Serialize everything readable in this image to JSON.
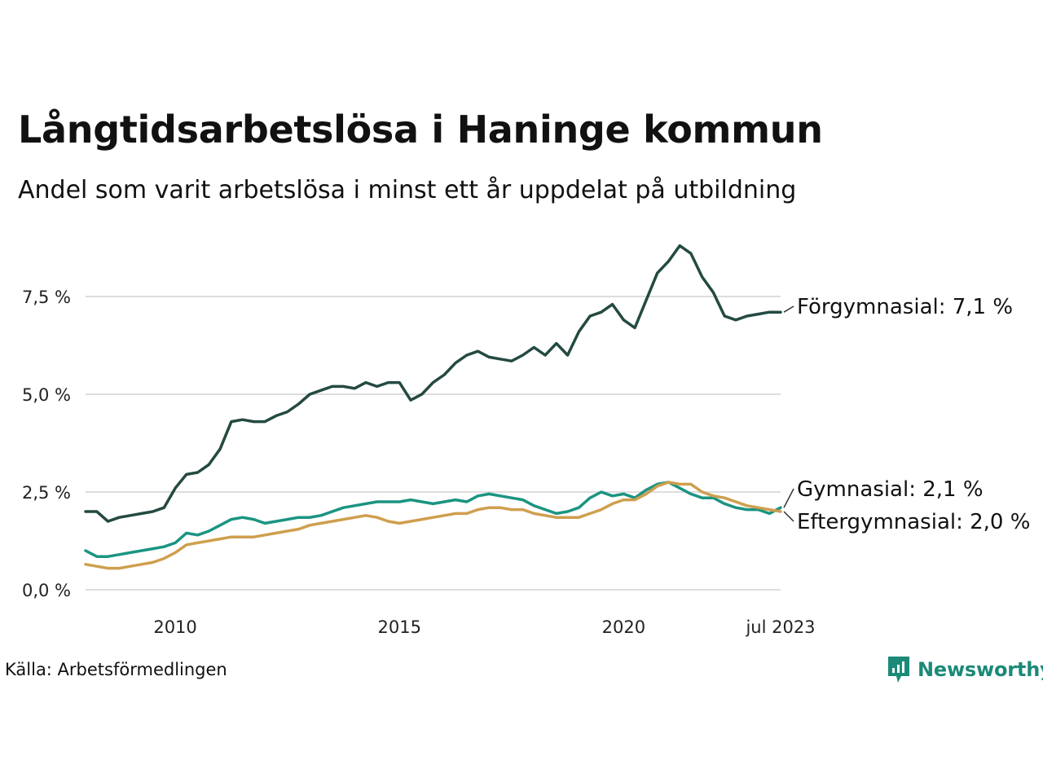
{
  "title": "Långtidsarbetslösa i Haninge kommun",
  "subtitle": "Andel som varit arbetslösa i minst ett år uppdelat på utbildning",
  "source": "Källa: Arbetsförmedlingen",
  "brand": "Newsworthy",
  "colors": {
    "forgymnasial": "#244a42",
    "gymnasial": "#1b9482",
    "eftergymnasial": "#cf9f4e",
    "grid": "#dddddd",
    "brand": "#1b8a78"
  },
  "chart_data": {
    "type": "line",
    "title": "Långtidsarbetslösa i Haninge kommun",
    "subtitle": "Andel som varit arbetslösa i minst ett år uppdelat på utbildning",
    "xlabel": "",
    "ylabel": "",
    "ylim": [
      0,
      9
    ],
    "y_ticks": [
      {
        "value": 0,
        "label": "0,0 %"
      },
      {
        "value": 2.5,
        "label": "2,5 %"
      },
      {
        "value": 5,
        "label": "5,0 %"
      },
      {
        "value": 7.5,
        "label": "7,5 %"
      }
    ],
    "x_ticks": [
      {
        "value": 2010,
        "label": "2010"
      },
      {
        "value": 2015,
        "label": "2015"
      },
      {
        "value": 2020,
        "label": "2020"
      },
      {
        "value": 2023.5,
        "label": "jul 2023"
      }
    ],
    "grid": "horizontal",
    "legend": "end-labels",
    "series": [
      {
        "name": "Förgymnasial",
        "end_label": "Förgymnasial: 7,1 %",
        "color": "#244a42",
        "points": [
          [
            2008.0,
            2.0
          ],
          [
            2008.25,
            2.0
          ],
          [
            2008.5,
            1.75
          ],
          [
            2008.75,
            1.85
          ],
          [
            2009.0,
            1.9
          ],
          [
            2009.25,
            1.95
          ],
          [
            2009.5,
            2.0
          ],
          [
            2009.75,
            2.1
          ],
          [
            2010.0,
            2.6
          ],
          [
            2010.25,
            2.95
          ],
          [
            2010.5,
            3.0
          ],
          [
            2010.75,
            3.2
          ],
          [
            2011.0,
            3.6
          ],
          [
            2011.25,
            4.3
          ],
          [
            2011.5,
            4.35
          ],
          [
            2011.75,
            4.3
          ],
          [
            2012.0,
            4.3
          ],
          [
            2012.25,
            4.45
          ],
          [
            2012.5,
            4.55
          ],
          [
            2012.75,
            4.75
          ],
          [
            2013.0,
            5.0
          ],
          [
            2013.25,
            5.1
          ],
          [
            2013.5,
            5.2
          ],
          [
            2013.75,
            5.2
          ],
          [
            2014.0,
            5.15
          ],
          [
            2014.25,
            5.3
          ],
          [
            2014.5,
            5.2
          ],
          [
            2014.75,
            5.3
          ],
          [
            2015.0,
            5.3
          ],
          [
            2015.25,
            4.85
          ],
          [
            2015.5,
            5.0
          ],
          [
            2015.75,
            5.3
          ],
          [
            2016.0,
            5.5
          ],
          [
            2016.25,
            5.8
          ],
          [
            2016.5,
            6.0
          ],
          [
            2016.75,
            6.1
          ],
          [
            2017.0,
            5.95
          ],
          [
            2017.25,
            5.9
          ],
          [
            2017.5,
            5.85
          ],
          [
            2017.75,
            6.0
          ],
          [
            2018.0,
            6.2
          ],
          [
            2018.25,
            6.0
          ],
          [
            2018.5,
            6.3
          ],
          [
            2018.75,
            6.0
          ],
          [
            2019.0,
            6.6
          ],
          [
            2019.25,
            7.0
          ],
          [
            2019.5,
            7.1
          ],
          [
            2019.75,
            7.3
          ],
          [
            2020.0,
            6.9
          ],
          [
            2020.25,
            6.7
          ],
          [
            2020.5,
            7.4
          ],
          [
            2020.75,
            8.1
          ],
          [
            2021.0,
            8.4
          ],
          [
            2021.25,
            8.8
          ],
          [
            2021.5,
            8.6
          ],
          [
            2021.75,
            8.0
          ],
          [
            2022.0,
            7.6
          ],
          [
            2022.25,
            7.0
          ],
          [
            2022.5,
            6.9
          ],
          [
            2022.75,
            7.0
          ],
          [
            2023.0,
            7.05
          ],
          [
            2023.25,
            7.1
          ],
          [
            2023.5,
            7.1
          ]
        ]
      },
      {
        "name": "Gymnasial",
        "end_label": "Gymnasial: 2,1 %",
        "color": "#1b9482",
        "points": [
          [
            2008.0,
            1.0
          ],
          [
            2008.25,
            0.85
          ],
          [
            2008.5,
            0.85
          ],
          [
            2008.75,
            0.9
          ],
          [
            2009.0,
            0.95
          ],
          [
            2009.25,
            1.0
          ],
          [
            2009.5,
            1.05
          ],
          [
            2009.75,
            1.1
          ],
          [
            2010.0,
            1.2
          ],
          [
            2010.25,
            1.45
          ],
          [
            2010.5,
            1.4
          ],
          [
            2010.75,
            1.5
          ],
          [
            2011.0,
            1.65
          ],
          [
            2011.25,
            1.8
          ],
          [
            2011.5,
            1.85
          ],
          [
            2011.75,
            1.8
          ],
          [
            2012.0,
            1.7
          ],
          [
            2012.25,
            1.75
          ],
          [
            2012.5,
            1.8
          ],
          [
            2012.75,
            1.85
          ],
          [
            2013.0,
            1.85
          ],
          [
            2013.25,
            1.9
          ],
          [
            2013.5,
            2.0
          ],
          [
            2013.75,
            2.1
          ],
          [
            2014.0,
            2.15
          ],
          [
            2014.25,
            2.2
          ],
          [
            2014.5,
            2.25
          ],
          [
            2014.75,
            2.25
          ],
          [
            2015.0,
            2.25
          ],
          [
            2015.25,
            2.3
          ],
          [
            2015.5,
            2.25
          ],
          [
            2015.75,
            2.2
          ],
          [
            2016.0,
            2.25
          ],
          [
            2016.25,
            2.3
          ],
          [
            2016.5,
            2.25
          ],
          [
            2016.75,
            2.4
          ],
          [
            2017.0,
            2.45
          ],
          [
            2017.25,
            2.4
          ],
          [
            2017.5,
            2.35
          ],
          [
            2017.75,
            2.3
          ],
          [
            2018.0,
            2.15
          ],
          [
            2018.25,
            2.05
          ],
          [
            2018.5,
            1.95
          ],
          [
            2018.75,
            2.0
          ],
          [
            2019.0,
            2.1
          ],
          [
            2019.25,
            2.35
          ],
          [
            2019.5,
            2.5
          ],
          [
            2019.75,
            2.4
          ],
          [
            2020.0,
            2.45
          ],
          [
            2020.25,
            2.35
          ],
          [
            2020.5,
            2.55
          ],
          [
            2020.75,
            2.7
          ],
          [
            2021.0,
            2.75
          ],
          [
            2021.25,
            2.6
          ],
          [
            2021.5,
            2.45
          ],
          [
            2021.75,
            2.35
          ],
          [
            2022.0,
            2.35
          ],
          [
            2022.25,
            2.2
          ],
          [
            2022.5,
            2.1
          ],
          [
            2022.75,
            2.05
          ],
          [
            2023.0,
            2.05
          ],
          [
            2023.25,
            1.95
          ],
          [
            2023.5,
            2.1
          ]
        ]
      },
      {
        "name": "Eftergymnasial",
        "end_label": "Eftergymnasial: 2,0 %",
        "color": "#cf9f4e",
        "points": [
          [
            2008.0,
            0.65
          ],
          [
            2008.25,
            0.6
          ],
          [
            2008.5,
            0.55
          ],
          [
            2008.75,
            0.55
          ],
          [
            2009.0,
            0.6
          ],
          [
            2009.25,
            0.65
          ],
          [
            2009.5,
            0.7
          ],
          [
            2009.75,
            0.8
          ],
          [
            2010.0,
            0.95
          ],
          [
            2010.25,
            1.15
          ],
          [
            2010.5,
            1.2
          ],
          [
            2010.75,
            1.25
          ],
          [
            2011.0,
            1.3
          ],
          [
            2011.25,
            1.35
          ],
          [
            2011.5,
            1.35
          ],
          [
            2011.75,
            1.35
          ],
          [
            2012.0,
            1.4
          ],
          [
            2012.25,
            1.45
          ],
          [
            2012.5,
            1.5
          ],
          [
            2012.75,
            1.55
          ],
          [
            2013.0,
            1.65
          ],
          [
            2013.25,
            1.7
          ],
          [
            2013.5,
            1.75
          ],
          [
            2013.75,
            1.8
          ],
          [
            2014.0,
            1.85
          ],
          [
            2014.25,
            1.9
          ],
          [
            2014.5,
            1.85
          ],
          [
            2014.75,
            1.75
          ],
          [
            2015.0,
            1.7
          ],
          [
            2015.25,
            1.75
          ],
          [
            2015.5,
            1.8
          ],
          [
            2015.75,
            1.85
          ],
          [
            2016.0,
            1.9
          ],
          [
            2016.25,
            1.95
          ],
          [
            2016.5,
            1.95
          ],
          [
            2016.75,
            2.05
          ],
          [
            2017.0,
            2.1
          ],
          [
            2017.25,
            2.1
          ],
          [
            2017.5,
            2.05
          ],
          [
            2017.75,
            2.05
          ],
          [
            2018.0,
            1.95
          ],
          [
            2018.25,
            1.9
          ],
          [
            2018.5,
            1.85
          ],
          [
            2018.75,
            1.85
          ],
          [
            2019.0,
            1.85
          ],
          [
            2019.25,
            1.95
          ],
          [
            2019.5,
            2.05
          ],
          [
            2019.75,
            2.2
          ],
          [
            2020.0,
            2.3
          ],
          [
            2020.25,
            2.3
          ],
          [
            2020.5,
            2.45
          ],
          [
            2020.75,
            2.65
          ],
          [
            2021.0,
            2.75
          ],
          [
            2021.25,
            2.7
          ],
          [
            2021.5,
            2.7
          ],
          [
            2021.75,
            2.5
          ],
          [
            2022.0,
            2.4
          ],
          [
            2022.25,
            2.35
          ],
          [
            2022.5,
            2.25
          ],
          [
            2022.75,
            2.15
          ],
          [
            2023.0,
            2.1
          ],
          [
            2023.25,
            2.05
          ],
          [
            2023.5,
            2.0
          ]
        ]
      }
    ]
  }
}
